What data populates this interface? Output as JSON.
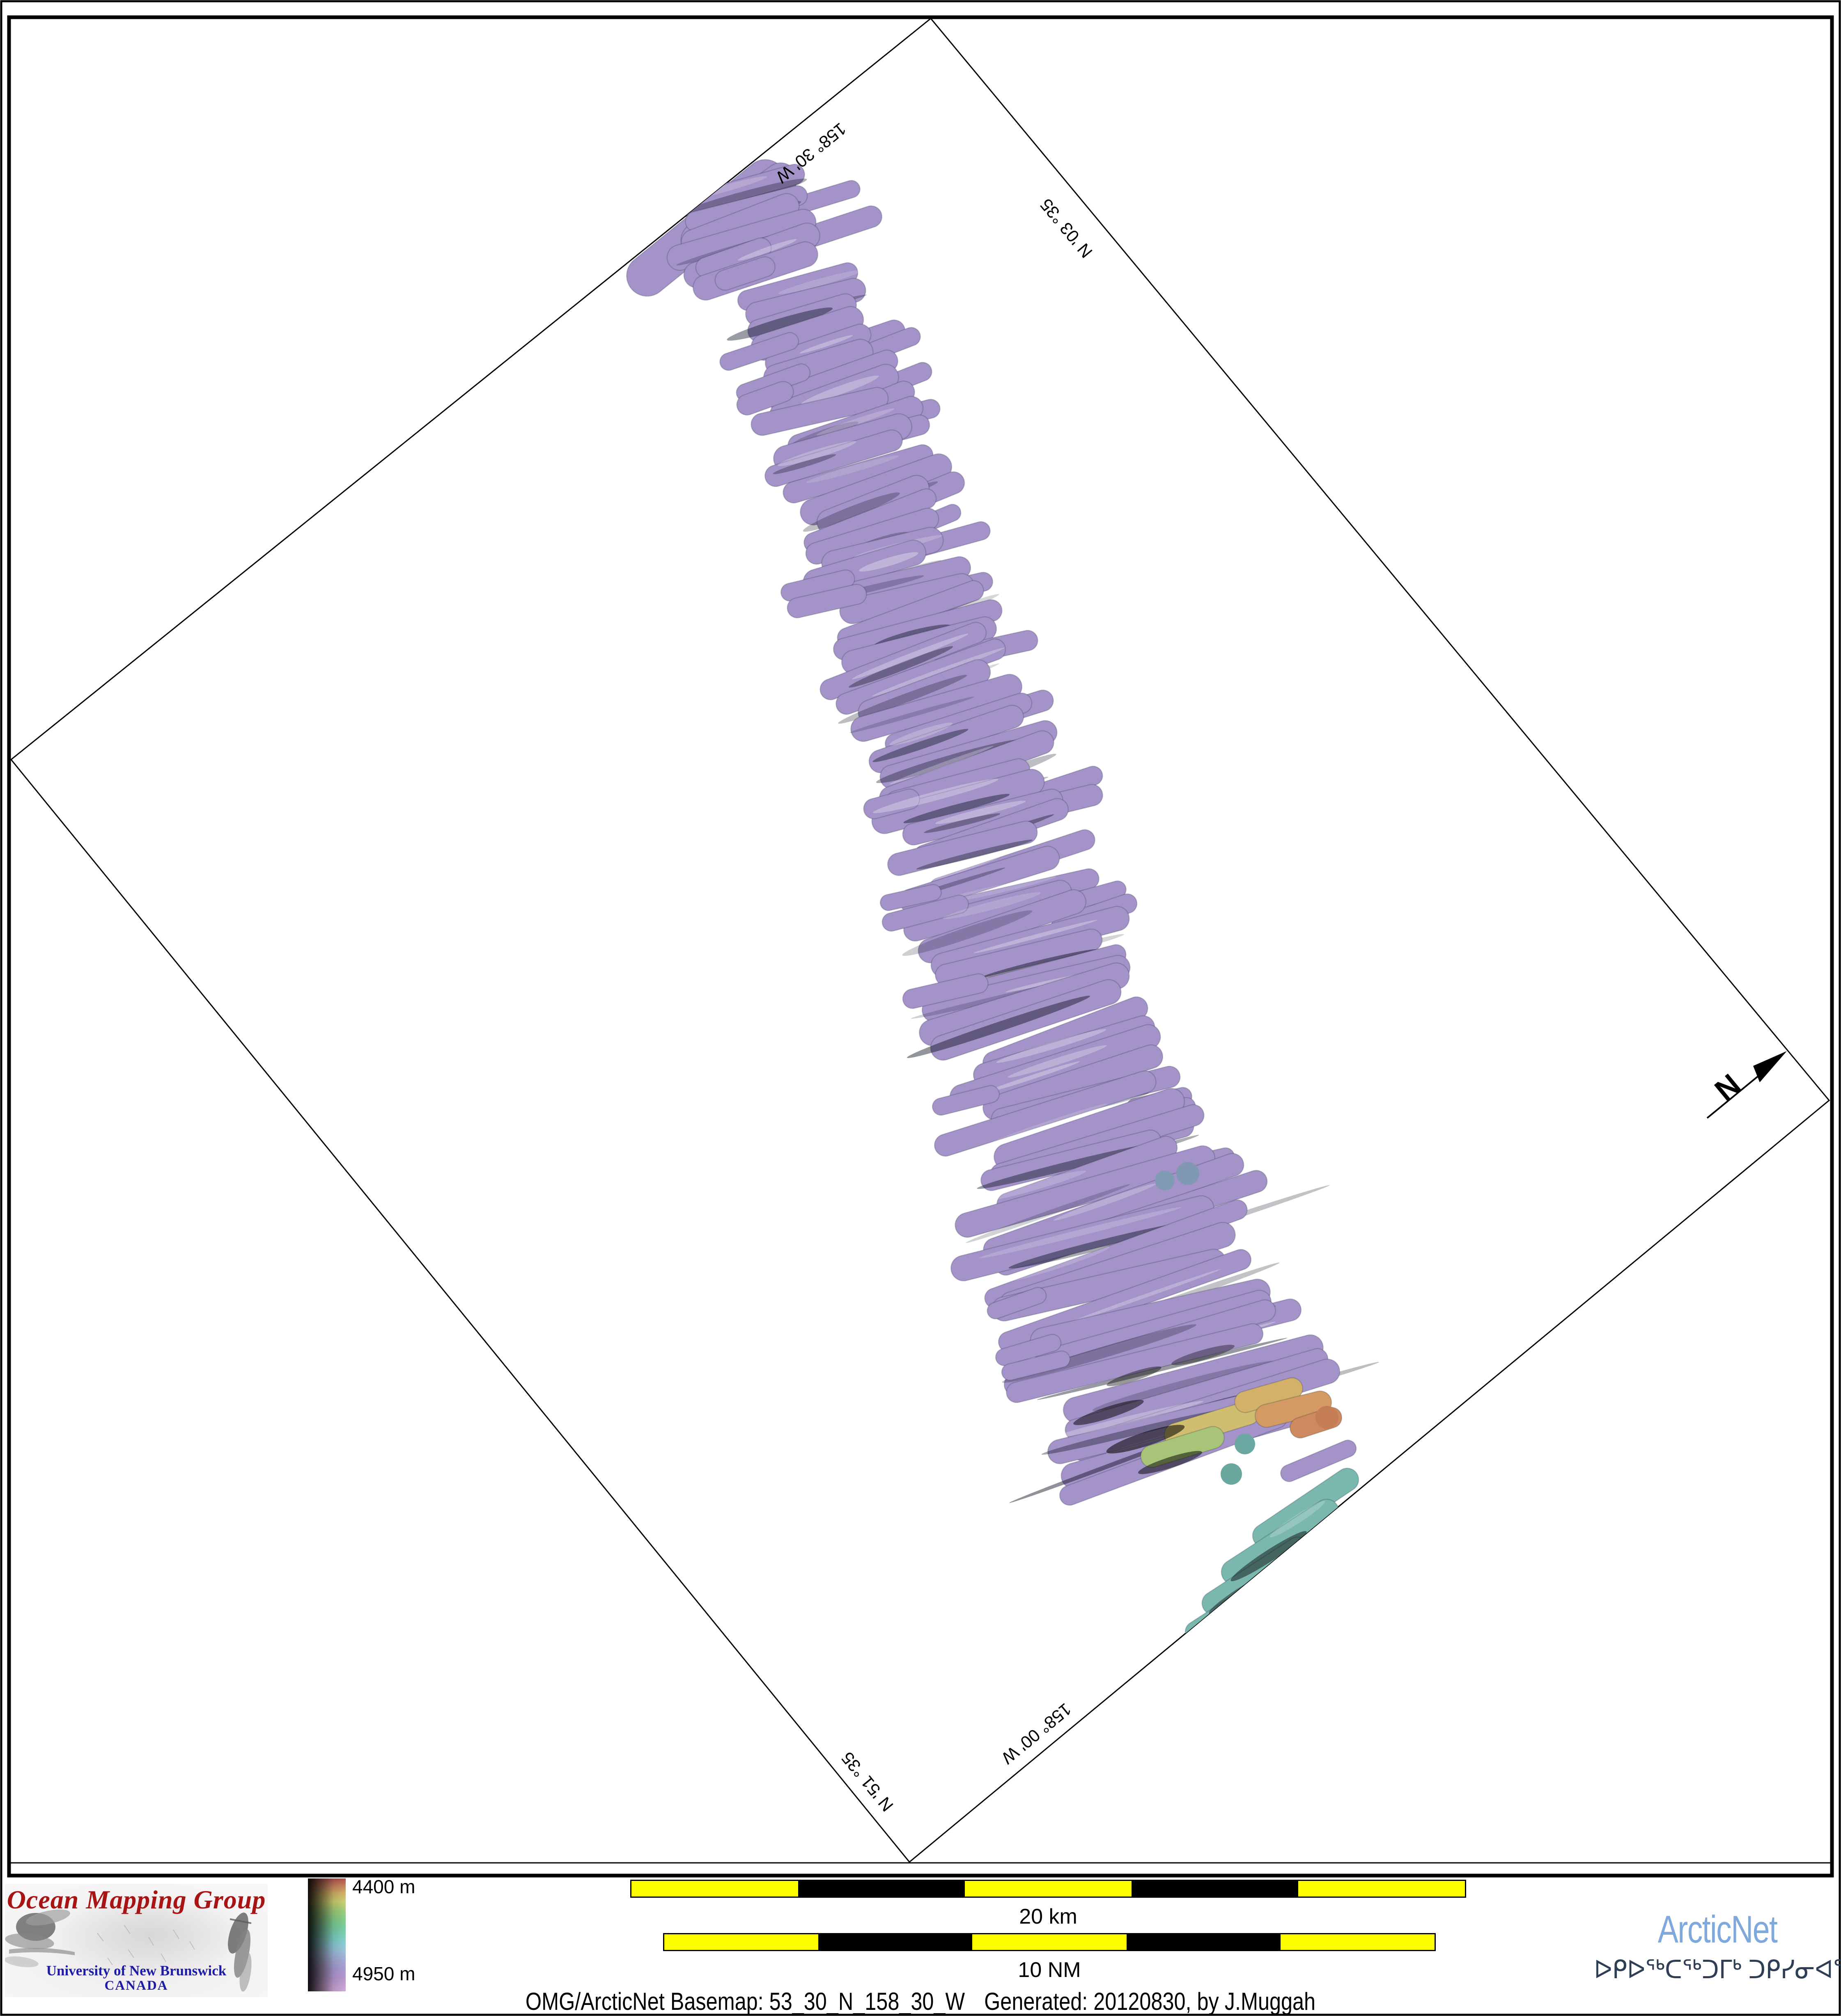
{
  "map": {
    "graticule_labels": {
      "top_left": "158° 30' W",
      "top_right": "53° 30' N",
      "bottom_left": "53° 15' N",
      "bottom_right": "158° 00' W"
    },
    "north_arrow_label": "N"
  },
  "legend": {
    "depth_top_label": "4400 m",
    "depth_bottom_label": "4950 m"
  },
  "scale_bars": {
    "km_label": "20 km",
    "nm_label": "10 NM"
  },
  "footer_caption": {
    "basemap": "OMG/ArcticNet Basemap: 53_30_N_158_30_W",
    "generated": "Generated: 20120830, by J.Muggah"
  },
  "logos": {
    "omg_title": "Ocean Mapping Group",
    "omg_university": "University of New Brunswick",
    "omg_country": "CANADA",
    "arcticnet_name": "ArcticNet",
    "arcticnet_inuktitut": "ᐅᑭᐅᖅᑕᖅᑐᒥᒃ ᑐᑭᓯᓂᐊᖅᑲᑎᒌᑦ"
  },
  "colors": {
    "scalebar_yellow": "#ffff00",
    "omg_red": "#a81414",
    "omg_blue": "#1c1ca8",
    "arcticnet_blue": "#7fa9dc",
    "inuktitut_navy": "#2e3e54",
    "depth_deep_purple": "#a493c8",
    "depth_mid_blue": "#7798b3",
    "depth_teal": "#72aba6",
    "depth_green": "#8ec286",
    "depth_shallow_orange": "#d28c5e"
  }
}
